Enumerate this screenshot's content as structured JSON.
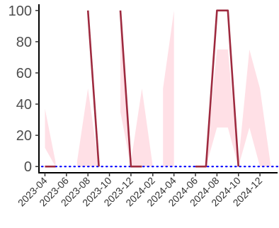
{
  "chart_data": {
    "type": "line",
    "x_axis": {
      "type": "date",
      "range": [
        "2023-03-15",
        "2025-01-20"
      ],
      "tick_labels": [
        "2023-04",
        "2023-06",
        "2023-08",
        "2023-10",
        "2023-12",
        "2024-02",
        "2024-04",
        "2024-06",
        "2024-08",
        "2024-10",
        "2024-12"
      ],
      "tick_dates": [
        "2023-04-01",
        "2023-06-01",
        "2023-08-01",
        "2023-10-01",
        "2023-12-01",
        "2024-02-01",
        "2024-04-01",
        "2024-06-01",
        "2024-08-01",
        "2024-10-01",
        "2024-12-01"
      ]
    },
    "y_axis": {
      "range": [
        -4,
        104
      ],
      "tick_labels": [
        "0",
        "20",
        "40",
        "60",
        "80",
        "100"
      ],
      "tick_values": [
        0,
        20,
        40,
        60,
        80,
        100
      ]
    },
    "grid": false,
    "reference_line": {
      "y": 0,
      "style": "dotted",
      "color": "#0000ff"
    },
    "band": {
      "color": "#ffe0e6",
      "segments": [
        [
          {
            "x": "2023-04-01",
            "low": 12,
            "high": 37
          },
          {
            "x": "2023-05-01",
            "low": 0,
            "high": 3
          }
        ],
        [
          {
            "x": "2023-07-01",
            "low": 0,
            "high": 3
          },
          {
            "x": "2023-08-01",
            "low": 0,
            "high": 50
          },
          {
            "x": "2023-09-01",
            "low": 0,
            "high": 0
          }
        ],
        [
          {
            "x": "2023-11-01",
            "low": 35,
            "high": 100
          },
          {
            "x": "2023-12-01",
            "low": 0,
            "high": 3
          },
          {
            "x": "2024-01-01",
            "low": 0,
            "high": 50
          },
          {
            "x": "2024-02-01",
            "low": 0,
            "high": 0
          }
        ],
        [
          {
            "x": "2024-03-01",
            "low": 0,
            "high": 50
          },
          {
            "x": "2024-04-01",
            "low": 0,
            "high": 100
          }
        ],
        [
          {
            "x": "2024-07-01",
            "low": 0,
            "high": 3
          },
          {
            "x": "2024-08-01",
            "low": 25,
            "high": 75
          },
          {
            "x": "2024-09-01",
            "low": 25,
            "high": 75
          },
          {
            "x": "2024-10-01",
            "low": 0,
            "high": 3
          },
          {
            "x": "2024-11-01",
            "low": 25,
            "high": 75
          },
          {
            "x": "2024-12-01",
            "low": 0,
            "high": 50
          },
          {
            "x": "2025-01-01",
            "low": 0,
            "high": 0
          }
        ]
      ]
    },
    "series": [
      {
        "color": "#9e2a3f",
        "segments": [
          [
            {
              "x": "2023-04-01",
              "y": 0
            },
            {
              "x": "2023-05-01",
              "y": 0
            }
          ],
          [
            {
              "x": "2023-08-01",
              "y": 100
            },
            {
              "x": "2023-09-01",
              "y": 0
            }
          ],
          [
            {
              "x": "2023-11-01",
              "y": 100
            },
            {
              "x": "2023-12-01",
              "y": 0
            },
            {
              "x": "2024-01-01",
              "y": 0
            }
          ],
          [
            {
              "x": "2024-06-01",
              "y": 0
            },
            {
              "x": "2024-07-01",
              "y": 0
            },
            {
              "x": "2024-08-01",
              "y": 100
            },
            {
              "x": "2024-09-01",
              "y": 100
            },
            {
              "x": "2024-10-01",
              "y": 0
            }
          ]
        ]
      }
    ]
  }
}
